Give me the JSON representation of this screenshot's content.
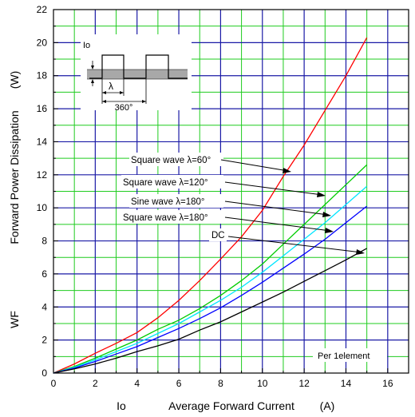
{
  "chart_data": {
    "type": "line",
    "title": "",
    "xlabel": "Average Forward Current",
    "xlabel_prefix": "Io",
    "xlabel_unit": "(A)",
    "ylabel": "Forward Power Dissipation",
    "ylabel_prefix": "WF",
    "ylabel_unit": "(W)",
    "xlim": [
      0,
      17
    ],
    "ylim": [
      0,
      22
    ],
    "x_ticks": [
      0,
      2,
      4,
      6,
      8,
      10,
      12,
      14,
      16
    ],
    "y_ticks": [
      0,
      2,
      4,
      6,
      8,
      10,
      12,
      14,
      16,
      18,
      20,
      22
    ],
    "grid": true,
    "note": "Per 1element",
    "colors": {
      "grid_major": "#1a1aa6",
      "grid_minor": "#1fcc1f"
    },
    "series": [
      {
        "name": "Square wave λ=60°",
        "color": "#ff0000",
        "points": [
          [
            0,
            0
          ],
          [
            1,
            0.55
          ],
          [
            2,
            1.2
          ],
          [
            3,
            1.8
          ],
          [
            4,
            2.45
          ],
          [
            5,
            3.35
          ],
          [
            6,
            4.4
          ],
          [
            7,
            5.6
          ],
          [
            8,
            6.9
          ],
          [
            9,
            8.25
          ],
          [
            10,
            9.85
          ],
          [
            11,
            11.9
          ],
          [
            12,
            13.8
          ],
          [
            13,
            15.9
          ],
          [
            14,
            18.0
          ],
          [
            15,
            20.3
          ]
        ]
      },
      {
        "name": "Square wave λ=120°",
        "color": "#00cc00",
        "points": [
          [
            0,
            0
          ],
          [
            1,
            0.4
          ],
          [
            2,
            0.9
          ],
          [
            3,
            1.45
          ],
          [
            4,
            2.0
          ],
          [
            5,
            2.65
          ],
          [
            6,
            3.2
          ],
          [
            7,
            3.9
          ],
          [
            8,
            4.7
          ],
          [
            9,
            5.6
          ],
          [
            10,
            6.6
          ],
          [
            11,
            7.8
          ],
          [
            12,
            9.0
          ],
          [
            13,
            10.2
          ],
          [
            14,
            11.4
          ],
          [
            15,
            12.6
          ]
        ]
      },
      {
        "name": "Sine wave λ=180°",
        "color": "#00e5ff",
        "points": [
          [
            0,
            0
          ],
          [
            1,
            0.35
          ],
          [
            2,
            0.8
          ],
          [
            3,
            1.3
          ],
          [
            4,
            1.8
          ],
          [
            5,
            2.4
          ],
          [
            6,
            3.0
          ],
          [
            7,
            3.7
          ],
          [
            8,
            4.4
          ],
          [
            9,
            5.2
          ],
          [
            10,
            6.1
          ],
          [
            11,
            7.1
          ],
          [
            12,
            8.1
          ],
          [
            13,
            9.1
          ],
          [
            14,
            10.2
          ],
          [
            15,
            11.3
          ]
        ]
      },
      {
        "name": "Square wave λ=180°",
        "color": "#0000ff",
        "points": [
          [
            0,
            0
          ],
          [
            1,
            0.3
          ],
          [
            2,
            0.7
          ],
          [
            3,
            1.15
          ],
          [
            4,
            1.6
          ],
          [
            5,
            2.15
          ],
          [
            6,
            2.7
          ],
          [
            7,
            3.3
          ],
          [
            8,
            3.95
          ],
          [
            9,
            4.7
          ],
          [
            10,
            5.5
          ],
          [
            11,
            6.35
          ],
          [
            12,
            7.2
          ],
          [
            13,
            8.1
          ],
          [
            14,
            9.1
          ],
          [
            15,
            10.1
          ]
        ]
      },
      {
        "name": "DC",
        "color": "#000000",
        "points": [
          [
            0,
            0
          ],
          [
            1,
            0.25
          ],
          [
            2,
            0.55
          ],
          [
            3,
            0.9
          ],
          [
            4,
            1.3
          ],
          [
            5,
            1.65
          ],
          [
            6,
            2.05
          ],
          [
            7,
            2.6
          ],
          [
            8,
            3.1
          ],
          [
            9,
            3.7
          ],
          [
            10,
            4.3
          ],
          [
            11,
            4.9
          ],
          [
            12,
            5.55
          ],
          [
            13,
            6.2
          ],
          [
            14,
            6.85
          ],
          [
            15,
            7.55
          ]
        ]
      }
    ],
    "annotations": [
      {
        "text": "Square wave λ=60°",
        "target": [
          11,
          12.0
        ]
      },
      {
        "text": "Square wave λ=120°",
        "target": [
          12.7,
          10.8
        ]
      },
      {
        "text": "Sine wave λ=180°",
        "target": [
          13.0,
          9.6
        ]
      },
      {
        "text": "Square wave λ=180°",
        "target": [
          13.2,
          8.6
        ]
      },
      {
        "text": "DC",
        "target": [
          14.6,
          7.3
        ]
      }
    ],
    "inset": {
      "labels": {
        "io": "Io",
        "lambda": "λ",
        "period": "360°"
      }
    }
  }
}
